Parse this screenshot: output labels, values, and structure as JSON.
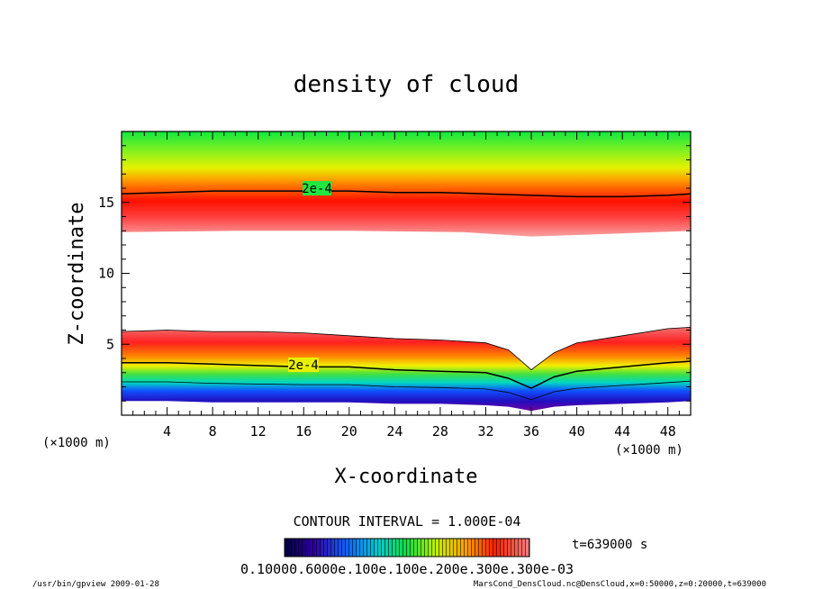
{
  "chart_data": {
    "type": "heatmap",
    "title": "density of cloud",
    "xlabel": "X-coordinate",
    "ylabel": "Z-coordinate",
    "x_unit": "(×1000 m)",
    "z_unit": "(×1000 m)",
    "xlim": [
      0,
      50
    ],
    "ylim": [
      0,
      20
    ],
    "x_ticks": [
      4,
      8,
      12,
      16,
      20,
      24,
      28,
      32,
      36,
      40,
      44,
      48
    ],
    "y_ticks": [
      5,
      10,
      15
    ],
    "contour_labels": [
      "2e-4",
      "2e-4"
    ],
    "upper_contour_2e-4": {
      "x": [
        0,
        4,
        8,
        12,
        16,
        20,
        24,
        28,
        32,
        36,
        40,
        44,
        48,
        50
      ],
      "z": [
        15.6,
        15.7,
        15.8,
        15.8,
        15.8,
        15.8,
        15.7,
        15.7,
        15.6,
        15.5,
        15.4,
        15.4,
        15.5,
        15.6
      ]
    },
    "upper_layer": {
      "x": [
        0,
        10,
        20,
        30,
        36,
        40,
        50
      ],
      "z_bottom": [
        12.9,
        13.0,
        13.0,
        12.9,
        12.6,
        12.7,
        13.0
      ],
      "z_top": 20
    },
    "lower_contour_2e-4": {
      "x": [
        0,
        4,
        8,
        12,
        16,
        20,
        24,
        28,
        32,
        34,
        36,
        38,
        40,
        44,
        48,
        50
      ],
      "z": [
        3.7,
        3.7,
        3.6,
        3.5,
        3.4,
        3.4,
        3.2,
        3.1,
        3.0,
        2.6,
        1.9,
        2.7,
        3.1,
        3.4,
        3.7,
        3.8
      ]
    },
    "lower_layer": {
      "x": [
        0,
        4,
        8,
        12,
        16,
        20,
        24,
        28,
        32,
        34,
        36,
        38,
        40,
        44,
        48,
        50
      ],
      "z_top": [
        5.9,
        6.0,
        5.9,
        5.9,
        5.8,
        5.6,
        5.4,
        5.3,
        5.1,
        4.6,
        3.2,
        4.4,
        5.1,
        5.6,
        6.1,
        6.2
      ],
      "z_bottom": [
        1.0,
        1.0,
        0.9,
        0.9,
        0.9,
        0.9,
        0.8,
        0.8,
        0.7,
        0.6,
        0.3,
        0.6,
        0.7,
        0.8,
        0.9,
        1.0
      ]
    },
    "contour_interval_label": "CONTOUR INTERVAL = 1.000E-04",
    "colorbar_labels": "0.10000.6000e.100e.100e.200e.300e.300e-03",
    "time_label": "t=639000  s",
    "colors": {
      "purple": "#5a00a0",
      "blue": "#1030ff",
      "cyan": "#00d0e0",
      "green": "#00e040",
      "yellow": "#f0f000",
      "orange": "#ff8000",
      "red": "#ff0000",
      "pink": "#f08080"
    }
  },
  "footer": {
    "left": "/usr/bin/gpview   2009-01-28",
    "right": "MarsCond_DensCloud.nc@DensCloud,x=0:50000,z=0:20000,t=639000"
  }
}
